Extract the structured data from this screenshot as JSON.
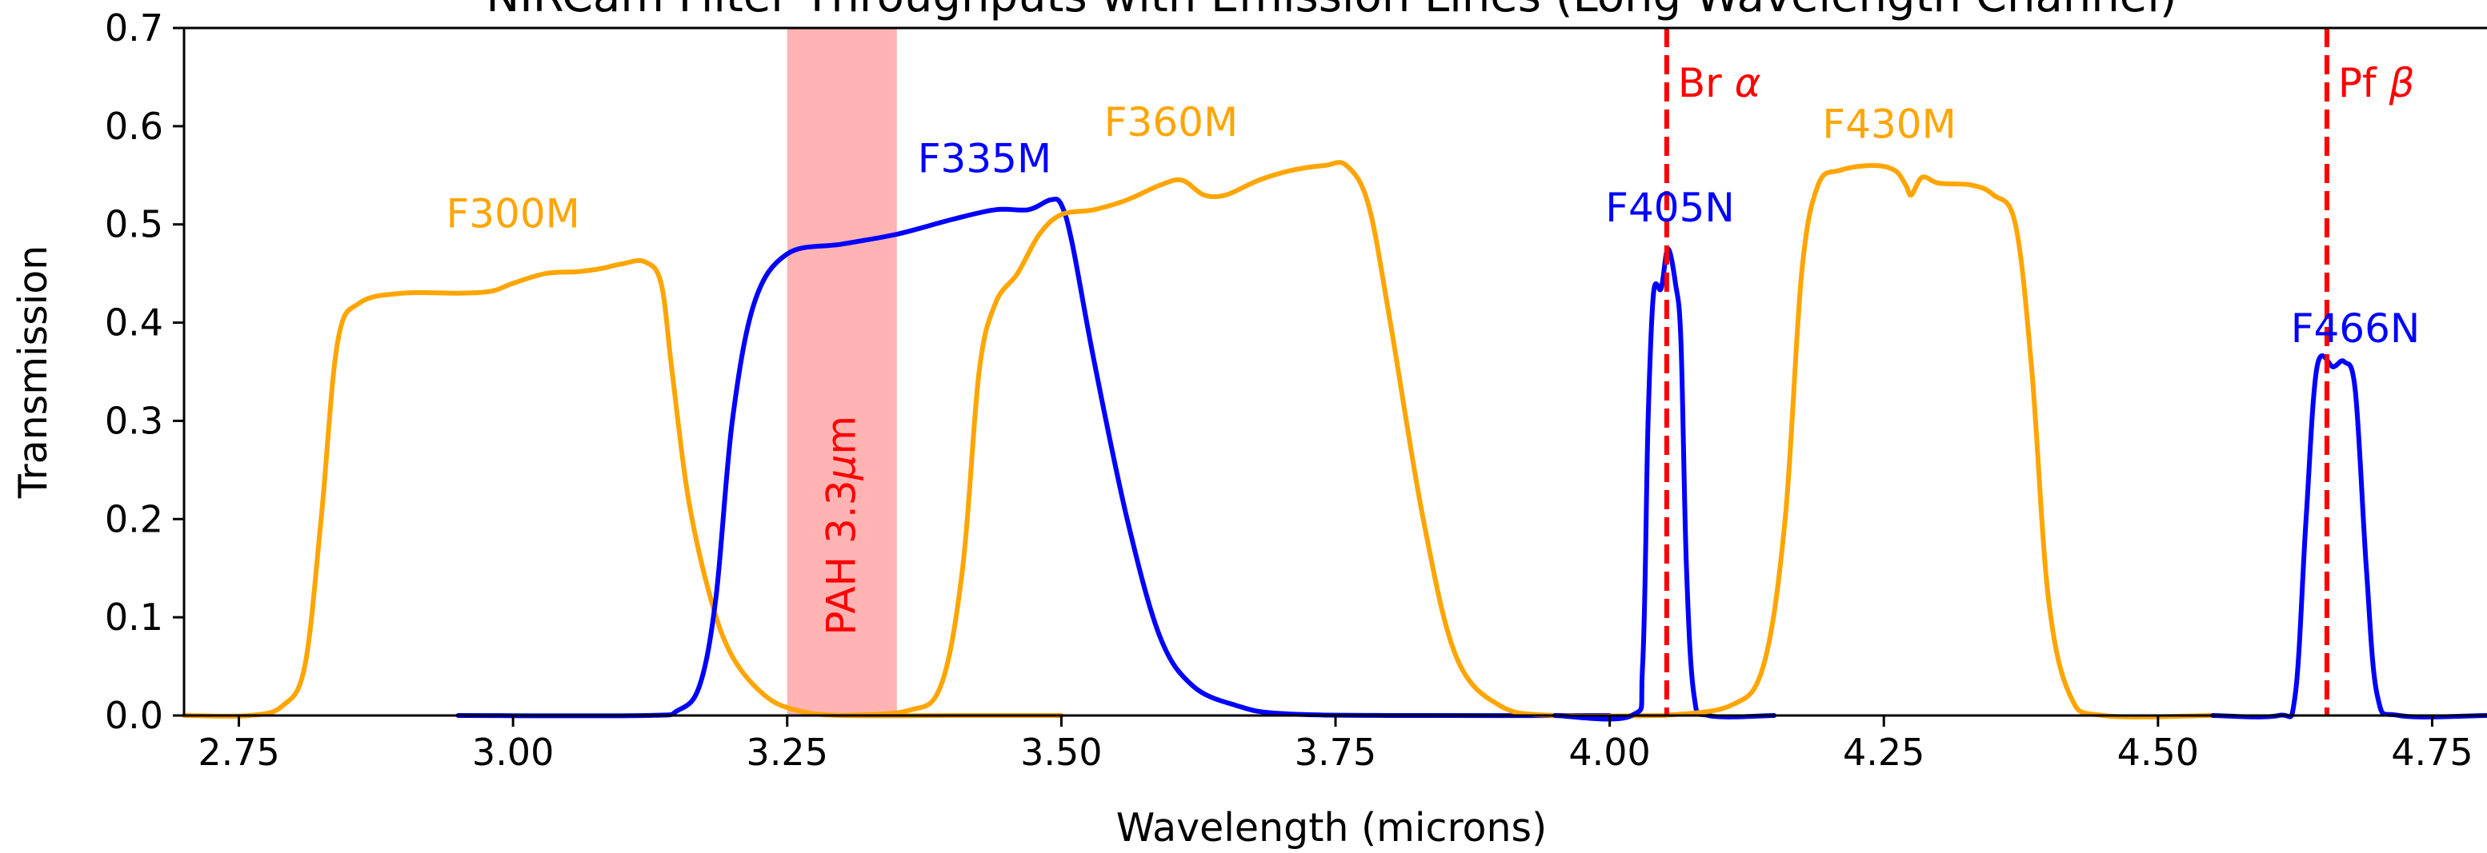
{
  "chart_data": {
    "type": "line",
    "title": "NIRCam Filter Throughputs with Emission Lines (Long Wavelength Channel)",
    "xlabel": "Wavelength (microns)",
    "ylabel": "Transmission",
    "xlim": [
      2.7,
      4.8
    ],
    "ylim": [
      0.0,
      0.7
    ],
    "grid": false,
    "x_ticks": [
      2.75,
      3.0,
      3.25,
      3.5,
      3.75,
      4.0,
      4.25,
      4.5,
      4.75
    ],
    "x_tick_labels": [
      "2.75",
      "3.00",
      "3.25",
      "3.50",
      "3.75",
      "4.00",
      "4.25",
      "4.50",
      "4.75"
    ],
    "y_ticks": [
      0.0,
      0.1,
      0.2,
      0.3,
      0.4,
      0.5,
      0.6,
      0.7
    ],
    "y_tick_labels": [
      "0.0",
      "0.1",
      "0.2",
      "0.3",
      "0.4",
      "0.5",
      "0.6",
      "0.7"
    ],
    "series": [
      {
        "name": "F300M",
        "color": "#FFA500",
        "points": [
          [
            2.7,
            0.0
          ],
          [
            2.76,
            0.0
          ],
          [
            2.79,
            0.01
          ],
          [
            2.81,
            0.05
          ],
          [
            2.825,
            0.2
          ],
          [
            2.84,
            0.38
          ],
          [
            2.86,
            0.42
          ],
          [
            2.9,
            0.43
          ],
          [
            2.95,
            0.43
          ],
          [
            2.98,
            0.432
          ],
          [
            3.0,
            0.44
          ],
          [
            3.03,
            0.45
          ],
          [
            3.06,
            0.452
          ],
          [
            3.08,
            0.455
          ],
          [
            3.1,
            0.46
          ],
          [
            3.12,
            0.462
          ],
          [
            3.135,
            0.44
          ],
          [
            3.145,
            0.35
          ],
          [
            3.16,
            0.22
          ],
          [
            3.18,
            0.12
          ],
          [
            3.2,
            0.06
          ],
          [
            3.23,
            0.02
          ],
          [
            3.26,
            0.005
          ],
          [
            3.3,
            0.0
          ],
          [
            3.4,
            0.0
          ],
          [
            3.5,
            0.0
          ]
        ]
      },
      {
        "name": "F335M",
        "color": "#0000FF",
        "points": [
          [
            2.95,
            0.0
          ],
          [
            3.12,
            0.0
          ],
          [
            3.15,
            0.005
          ],
          [
            3.17,
            0.03
          ],
          [
            3.185,
            0.12
          ],
          [
            3.2,
            0.3
          ],
          [
            3.22,
            0.42
          ],
          [
            3.25,
            0.47
          ],
          [
            3.3,
            0.48
          ],
          [
            3.35,
            0.49
          ],
          [
            3.4,
            0.505
          ],
          [
            3.44,
            0.515
          ],
          [
            3.47,
            0.515
          ],
          [
            3.49,
            0.525
          ],
          [
            3.5,
            0.52
          ],
          [
            3.51,
            0.48
          ],
          [
            3.53,
            0.36
          ],
          [
            3.56,
            0.2
          ],
          [
            3.59,
            0.08
          ],
          [
            3.62,
            0.03
          ],
          [
            3.66,
            0.01
          ],
          [
            3.7,
            0.002
          ],
          [
            3.8,
            0.0
          ],
          [
            4.0,
            0.0
          ]
        ]
      },
      {
        "name": "F360M",
        "color": "#FFA500",
        "points": [
          [
            3.3,
            0.0
          ],
          [
            3.36,
            0.005
          ],
          [
            3.39,
            0.03
          ],
          [
            3.41,
            0.15
          ],
          [
            3.425,
            0.35
          ],
          [
            3.44,
            0.42
          ],
          [
            3.46,
            0.45
          ],
          [
            3.48,
            0.49
          ],
          [
            3.5,
            0.51
          ],
          [
            3.53,
            0.515
          ],
          [
            3.56,
            0.525
          ],
          [
            3.59,
            0.54
          ],
          [
            3.61,
            0.545
          ],
          [
            3.63,
            0.53
          ],
          [
            3.65,
            0.53
          ],
          [
            3.68,
            0.545
          ],
          [
            3.71,
            0.555
          ],
          [
            3.74,
            0.56
          ],
          [
            3.76,
            0.56
          ],
          [
            3.78,
            0.52
          ],
          [
            3.8,
            0.4
          ],
          [
            3.83,
            0.2
          ],
          [
            3.86,
            0.06
          ],
          [
            3.9,
            0.01
          ],
          [
            3.95,
            0.0
          ],
          [
            4.05,
            0.0
          ]
        ]
      },
      {
        "name": "F405N",
        "color": "#0000FF",
        "points": [
          [
            3.95,
            0.0
          ],
          [
            4.02,
            0.0
          ],
          [
            4.03,
            0.05
          ],
          [
            4.035,
            0.3
          ],
          [
            4.04,
            0.43
          ],
          [
            4.047,
            0.435
          ],
          [
            4.053,
            0.475
          ],
          [
            4.06,
            0.44
          ],
          [
            4.065,
            0.38
          ],
          [
            4.07,
            0.15
          ],
          [
            4.077,
            0.02
          ],
          [
            4.09,
            0.0
          ],
          [
            4.15,
            0.0
          ]
        ]
      },
      {
        "name": "F430M",
        "color": "#FFA500",
        "points": [
          [
            4.05,
            0.0
          ],
          [
            4.11,
            0.01
          ],
          [
            4.14,
            0.05
          ],
          [
            4.16,
            0.2
          ],
          [
            4.175,
            0.45
          ],
          [
            4.19,
            0.54
          ],
          [
            4.21,
            0.555
          ],
          [
            4.24,
            0.56
          ],
          [
            4.26,
            0.555
          ],
          [
            4.27,
            0.54
          ],
          [
            4.275,
            0.53
          ],
          [
            4.285,
            0.548
          ],
          [
            4.3,
            0.542
          ],
          [
            4.33,
            0.54
          ],
          [
            4.35,
            0.53
          ],
          [
            4.37,
            0.5
          ],
          [
            4.385,
            0.35
          ],
          [
            4.4,
            0.12
          ],
          [
            4.42,
            0.02
          ],
          [
            4.45,
            0.0
          ],
          [
            4.55,
            0.0
          ]
        ]
      },
      {
        "name": "F466N",
        "color": "#0000FF",
        "points": [
          [
            4.55,
            0.0
          ],
          [
            4.61,
            0.0
          ],
          [
            4.625,
            0.02
          ],
          [
            4.635,
            0.2
          ],
          [
            4.645,
            0.355
          ],
          [
            4.66,
            0.355
          ],
          [
            4.67,
            0.36
          ],
          [
            4.68,
            0.33
          ],
          [
            4.69,
            0.15
          ],
          [
            4.7,
            0.02
          ],
          [
            4.72,
            0.0
          ],
          [
            4.8,
            0.0
          ]
        ]
      }
    ],
    "labels": [
      {
        "text": "F300M",
        "x": 3.0,
        "y": 0.497,
        "color": "#FFA500"
      },
      {
        "text": "F335M",
        "x": 3.43,
        "y": 0.553,
        "color": "#0000FF"
      },
      {
        "text": "F360M",
        "x": 3.6,
        "y": 0.59,
        "color": "#FFA500"
      },
      {
        "text": "F405N",
        "x": 4.055,
        "y": 0.503,
        "color": "#0000FF"
      },
      {
        "text": "F430M",
        "x": 4.255,
        "y": 0.588,
        "color": "#FFA500"
      },
      {
        "text": "F466N",
        "x": 4.68,
        "y": 0.38,
        "color": "#0000FF"
      }
    ],
    "emission_lines": [
      {
        "name": "Br α",
        "prefix": "Br ",
        "symbol": "α",
        "wavelength": 4.052,
        "color": "#FF0000"
      },
      {
        "name": "Pf β",
        "prefix": "Pf ",
        "symbol": "β",
        "wavelength": 4.654,
        "color": "#FF0000"
      }
    ],
    "bands": [
      {
        "label": "PAH 3.3μm",
        "prefix": "PAH 3.3",
        "symbol": "μ",
        "suffix": "m",
        "x_range": [
          3.25,
          3.35
        ],
        "color": "#FFB3B3",
        "text_color": "#FF0000"
      }
    ]
  }
}
